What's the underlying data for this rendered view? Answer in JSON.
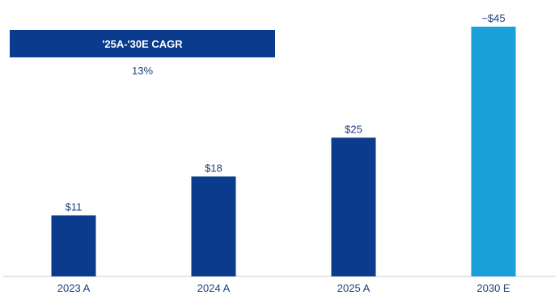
{
  "cagr": {
    "label": "'25A-'30E CAGR",
    "value": "13%"
  },
  "colors": {
    "actual_bar": "#0b3b8c",
    "estimate_bar": "#1aa0d8",
    "label_text": "#1f3f7a",
    "axis": "#c8ccd4"
  },
  "chart_data": {
    "type": "bar",
    "categories": [
      "2023 A",
      "2024 A",
      "2025 A",
      "2030 E"
    ],
    "values": [
      11,
      18,
      25,
      45
    ],
    "value_labels": [
      "$11",
      "$18",
      "$25",
      "~$45"
    ],
    "bar_colors": [
      "#0b3b8c",
      "#0b3b8c",
      "#0b3b8c",
      "#1aa0d8"
    ],
    "title": "",
    "xlabel": "",
    "ylabel": "",
    "ylim": [
      0,
      45
    ],
    "grid": false,
    "legend": "none"
  }
}
